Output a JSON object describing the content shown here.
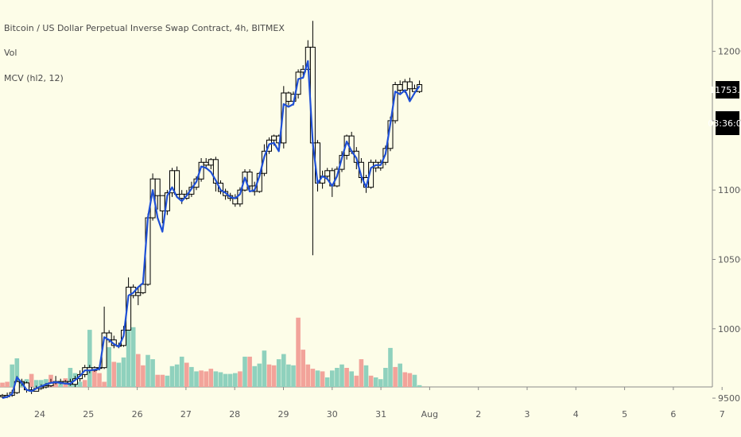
{
  "legend": {
    "symbol": "Bitcoin / US Dollar Perpetual Inverse Swap Contract, 4h, BITMEX",
    "volume": "Vol",
    "indicator": "MCV (hl2, 12)"
  },
  "price_tag": "11753.5",
  "countdown_tag": "03:36:05",
  "colors": {
    "background": "#fdfde8",
    "candle_outline": "#000000",
    "line": "#1e4fd6",
    "volume_up": "#8fd1bd",
    "volume_down": "#f2a39a",
    "tag_bg": "#000000"
  },
  "chart_data": {
    "type": "candlestick",
    "title": "Bitcoin / US Dollar Perpetual Inverse Swap Contract, 4h, BITMEX",
    "xlabel": "",
    "ylabel": "",
    "x_ticks": [
      "24",
      "25",
      "26",
      "27",
      "28",
      "29",
      "30",
      "31",
      "Aug",
      "2",
      "3",
      "4",
      "5",
      "6",
      "7"
    ],
    "y_ticks": [
      9500.0,
      10000.0,
      10500.0,
      11000.0,
      11500.0,
      12000.0
    ],
    "y_tick_labels": [
      "9500.0",
      "10000.0",
      "10500.0",
      "11000.0",
      "11500.0",
      "12000.0"
    ],
    "ylim": [
      9220,
      12370
    ],
    "grid": false,
    "volume_scale_max": 100,
    "last_price": 11753.5,
    "candles": [
      [
        9520,
        9510,
        9530,
        9500
      ],
      [
        9510,
        9520,
        9540,
        9500
      ],
      [
        9520,
        9540,
        9560,
        9510
      ],
      [
        9540,
        9620,
        9660,
        9530
      ],
      [
        9620,
        9610,
        9640,
        9590
      ],
      [
        9610,
        9560,
        9620,
        9540
      ],
      [
        9560,
        9550,
        9580,
        9530
      ],
      [
        9550,
        9570,
        9590,
        9550
      ],
      [
        9570,
        9580,
        9600,
        9560
      ],
      [
        9580,
        9590,
        9610,
        9570
      ],
      [
        9590,
        9610,
        9640,
        9580
      ],
      [
        9610,
        9620,
        9660,
        9600
      ],
      [
        9620,
        9610,
        9640,
        9600
      ],
      [
        9610,
        9620,
        9630,
        9600
      ],
      [
        9620,
        9600,
        9640,
        9590
      ],
      [
        9600,
        9640,
        9660,
        9580
      ],
      [
        9640,
        9670,
        9700,
        9620
      ],
      [
        9670,
        9720,
        9740,
        9650
      ],
      [
        9720,
        9700,
        9740,
        9680
      ],
      [
        9700,
        9720,
        9730,
        9690
      ],
      [
        9720,
        9720,
        9740,
        9700
      ],
      [
        9720,
        9970,
        10160,
        9710
      ],
      [
        9970,
        9920,
        9990,
        9900
      ],
      [
        9920,
        9880,
        9950,
        9860
      ],
      [
        9880,
        9880,
        9900,
        9860
      ],
      [
        9880,
        9990,
        10020,
        9870
      ],
      [
        9990,
        10300,
        10370,
        9990
      ],
      [
        10300,
        10240,
        10320,
        10220
      ],
      [
        10240,
        10260,
        10300,
        10170
      ],
      [
        10260,
        10320,
        10370,
        10250
      ],
      [
        10320,
        10800,
        10830,
        10310
      ],
      [
        10800,
        11080,
        11120,
        10780
      ],
      [
        11080,
        10960,
        11050,
        10860
      ],
      [
        10960,
        10850,
        10900,
        10760
      ],
      [
        10850,
        10980,
        11000,
        10820
      ],
      [
        10980,
        11140,
        11160,
        10950
      ],
      [
        11140,
        10970,
        11170,
        10950
      ],
      [
        10970,
        10940,
        11000,
        10900
      ],
      [
        10940,
        10970,
        11000,
        10930
      ],
      [
        10970,
        11020,
        11060,
        10950
      ],
      [
        11020,
        11080,
        11100,
        11000
      ],
      [
        11080,
        11200,
        11230,
        11060
      ],
      [
        11200,
        11180,
        11230,
        11150
      ],
      [
        11180,
        11220,
        11230,
        11150
      ],
      [
        11220,
        11050,
        11240,
        10990
      ],
      [
        11050,
        10990,
        11070,
        10970
      ],
      [
        10990,
        10960,
        11010,
        10930
      ],
      [
        10960,
        10940,
        10980,
        10920
      ],
      [
        10940,
        10900,
        10970,
        10880
      ],
      [
        10900,
        11000,
        11020,
        10880
      ],
      [
        11000,
        11130,
        11150,
        10990
      ],
      [
        11130,
        11030,
        11150,
        11000
      ],
      [
        11030,
        10990,
        11060,
        10960
      ],
      [
        10990,
        11120,
        11130,
        10980
      ],
      [
        11120,
        11280,
        11330,
        11100
      ],
      [
        11280,
        11360,
        11380,
        11260
      ],
      [
        11360,
        11390,
        11400,
        11320
      ],
      [
        11390,
        11340,
        11400,
        11320
      ],
      [
        11340,
        11700,
        11750,
        11300
      ],
      [
        11700,
        11640,
        11710,
        11610
      ],
      [
        11640,
        11690,
        11710,
        11610
      ],
      [
        11690,
        11850,
        11870,
        11660
      ],
      [
        11850,
        11870,
        11900,
        11830
      ],
      [
        11870,
        12030,
        12080,
        11860
      ],
      [
        12030,
        11340,
        12220,
        10530
      ],
      [
        11340,
        11050,
        11360,
        10990
      ],
      [
        11050,
        11100,
        11140,
        11010
      ],
      [
        11100,
        11140,
        11160,
        11080
      ],
      [
        11140,
        11030,
        11160,
        10950
      ],
      [
        11030,
        11150,
        11170,
        11020
      ],
      [
        11150,
        11250,
        11280,
        11130
      ],
      [
        11250,
        11390,
        11400,
        11220
      ],
      [
        11390,
        11280,
        11420,
        11260
      ],
      [
        11280,
        11200,
        11310,
        11150
      ],
      [
        11200,
        11090,
        11230,
        11050
      ],
      [
        11090,
        11020,
        11110,
        10980
      ],
      [
        11020,
        11200,
        11220,
        11010
      ],
      [
        11200,
        11160,
        11220,
        11130
      ],
      [
        11160,
        11200,
        11220,
        11140
      ],
      [
        11200,
        11300,
        11320,
        11180
      ],
      [
        11300,
        11500,
        11530,
        11280
      ],
      [
        11500,
        11760,
        11780,
        11480
      ],
      [
        11760,
        11720,
        11790,
        11700
      ],
      [
        11720,
        11780,
        11800,
        11700
      ],
      [
        11780,
        11730,
        11810,
        11650
      ],
      [
        11730,
        11710,
        11760,
        11690
      ],
      [
        11710,
        11760,
        11790,
        11700
      ]
    ],
    "ma_line": [
      9500,
      9510,
      9530,
      9650,
      9610,
      9560,
      9550,
      9570,
      9585,
      9600,
      9610,
      9615,
      9610,
      9605,
      9605,
      9630,
      9660,
      9700,
      9700,
      9705,
      9710,
      9940,
      9920,
      9890,
      9870,
      9950,
      10240,
      10260,
      10300,
      10330,
      10800,
      11000,
      10800,
      10700,
      10960,
      11020,
      10950,
      10920,
      10960,
      11010,
      11060,
      11170,
      11160,
      11130,
      11070,
      11000,
      10980,
      10950,
      10940,
      10970,
      11090,
      10990,
      11000,
      11100,
      11240,
      11330,
      11340,
      11280,
      11620,
      11600,
      11620,
      11800,
      11810,
      11930,
      11340,
      11050,
      11100,
      11080,
      11030,
      11100,
      11230,
      11350,
      11280,
      11230,
      11100,
      11020,
      11160,
      11180,
      11180,
      11260,
      11480,
      11710,
      11690,
      11720,
      11640,
      11700,
      11750
    ],
    "volumes": [
      [
        5,
        1
      ],
      [
        6,
        1
      ],
      [
        26,
        0
      ],
      [
        33,
        0
      ],
      [
        7,
        0
      ],
      [
        9,
        0
      ],
      [
        15,
        1
      ],
      [
        8,
        0
      ],
      [
        8,
        0
      ],
      [
        9,
        0
      ],
      [
        14,
        1
      ],
      [
        5,
        1
      ],
      [
        7,
        0
      ],
      [
        10,
        1
      ],
      [
        22,
        0
      ],
      [
        16,
        0
      ],
      [
        6,
        0
      ],
      [
        8,
        1
      ],
      [
        66,
        0
      ],
      [
        22,
        1
      ],
      [
        16,
        1
      ],
      [
        6,
        1
      ],
      [
        46,
        0
      ],
      [
        29,
        1
      ],
      [
        28,
        0
      ],
      [
        34,
        0
      ],
      [
        80,
        0
      ],
      [
        69,
        0
      ],
      [
        38,
        1
      ],
      [
        25,
        1
      ],
      [
        37,
        0
      ],
      [
        32,
        0
      ],
      [
        14,
        1
      ],
      [
        14,
        1
      ],
      [
        13,
        0
      ],
      [
        24,
        0
      ],
      [
        26,
        0
      ],
      [
        35,
        0
      ],
      [
        28,
        1
      ],
      [
        23,
        0
      ],
      [
        18,
        0
      ],
      [
        19,
        1
      ],
      [
        18,
        1
      ],
      [
        21,
        1
      ],
      [
        18,
        0
      ],
      [
        17,
        0
      ],
      [
        15,
        0
      ],
      [
        15,
        0
      ],
      [
        16,
        0
      ],
      [
        18,
        1
      ],
      [
        35,
        0
      ],
      [
        35,
        1
      ],
      [
        24,
        0
      ],
      [
        27,
        0
      ],
      [
        42,
        0
      ],
      [
        26,
        1
      ],
      [
        25,
        1
      ],
      [
        32,
        0
      ],
      [
        38,
        0
      ],
      [
        26,
        0
      ],
      [
        25,
        0
      ],
      [
        80,
        1
      ],
      [
        43,
        1
      ],
      [
        26,
        1
      ],
      [
        21,
        1
      ],
      [
        19,
        0
      ],
      [
        18,
        1
      ],
      [
        11,
        0
      ],
      [
        19,
        0
      ],
      [
        22,
        0
      ],
      [
        26,
        0
      ],
      [
        22,
        1
      ],
      [
        18,
        0
      ],
      [
        13,
        1
      ],
      [
        32,
        1
      ],
      [
        25,
        0
      ],
      [
        13,
        1
      ],
      [
        11,
        0
      ],
      [
        9,
        0
      ],
      [
        22,
        0
      ],
      [
        45,
        0
      ],
      [
        23,
        1
      ],
      [
        27,
        0
      ],
      [
        17,
        1
      ],
      [
        16,
        1
      ],
      [
        14,
        0
      ],
      [
        2,
        0
      ]
    ]
  }
}
